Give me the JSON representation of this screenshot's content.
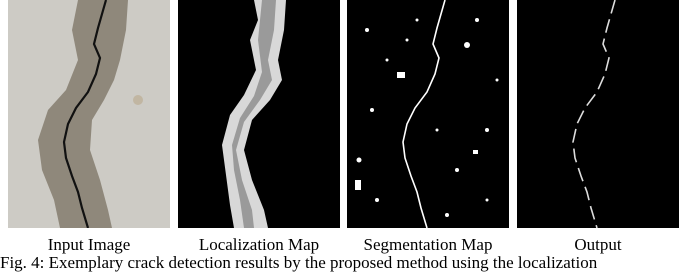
{
  "figure": {
    "panels": [
      {
        "label": "Input Image"
      },
      {
        "label": "Localization Map"
      },
      {
        "label": "Segmentation Map"
      },
      {
        "label": "Output"
      }
    ],
    "caption": "Fig. 4: Exemplary crack detection results by the proposed method using the localization"
  }
}
